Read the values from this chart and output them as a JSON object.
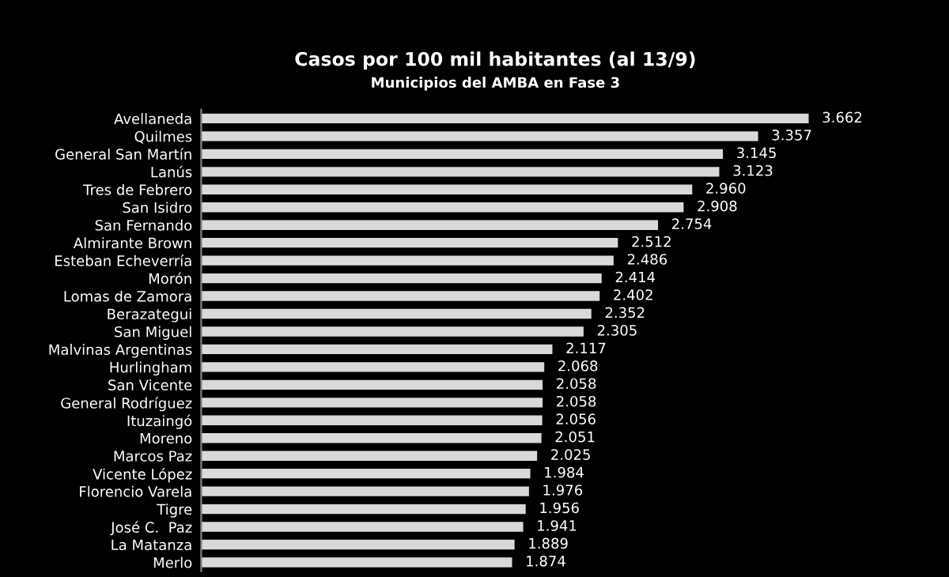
{
  "chart_data": {
    "type": "bar",
    "orientation": "horizontal",
    "title": "Casos por 100 mil habitantes (al 13/9)",
    "subtitle": "Municipios del AMBA en Fase 3",
    "categories": [
      "Avellaneda",
      "Quilmes",
      "General San Martín",
      "Lanús",
      "Tres de Febrero",
      "San Isidro",
      "San Fernando",
      "Almirante Brown",
      "Esteban Echeverría",
      "Morón",
      "Lomas de Zamora",
      "Berazategui",
      "San Miguel",
      "Malvinas Argentinas",
      "Hurlingham",
      "San Vicente",
      "General Rodríguez",
      "Ituzaingó",
      "Moreno",
      "Marcos Paz",
      "Vicente López",
      "Florencio Varela",
      "Tigre",
      "José C.  Paz",
      "La Matanza",
      "Merlo"
    ],
    "values": [
      3662,
      3357,
      3145,
      3123,
      2960,
      2908,
      2754,
      2512,
      2486,
      2414,
      2402,
      2352,
      2305,
      2117,
      2068,
      2058,
      2058,
      2056,
      2051,
      2025,
      1984,
      1976,
      1956,
      1941,
      1889,
      1874
    ],
    "value_labels": [
      "3.662",
      "3.357",
      "3.145",
      "3.123",
      "2.960",
      "2.908",
      "2.754",
      "2.512",
      "2.486",
      "2.414",
      "2.402",
      "2.352",
      "2.305",
      "2.117",
      "2.068",
      "2.058",
      "2.058",
      "2.056",
      "2.051",
      "2.025",
      "1.984",
      "1.976",
      "1.956",
      "1.941",
      "1.889",
      "1.874"
    ],
    "color": "#d9d9d9",
    "grid": false,
    "legend": false
  }
}
